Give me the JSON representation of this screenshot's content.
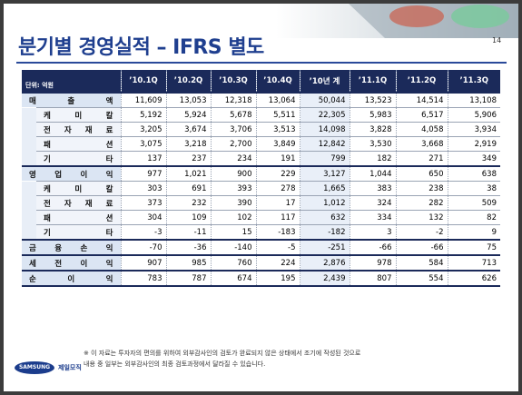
{
  "header": {
    "title": "분기별 경영실적 – IFRS 별도",
    "page": "14"
  },
  "table": {
    "unit": "단위: 억원",
    "columns": [
      "’10.1Q",
      "’10.2Q",
      "’10.3Q",
      "’10.4Q",
      "’10년 계",
      "’11.1Q",
      "’11.2Q",
      "’11.3Q"
    ],
    "rows": [
      {
        "label": "매 출 액",
        "values": [
          "11,609",
          "13,053",
          "12,318",
          "13,064",
          "50,044",
          "13,523",
          "14,514",
          "13,108"
        ],
        "sub": [
          {
            "label": "케 미 칼",
            "values": [
              "5,192",
              "5,924",
              "5,678",
              "5,511",
              "22,305",
              "5,983",
              "6,517",
              "5,906"
            ]
          },
          {
            "label": "전 자 재 료",
            "values": [
              "3,205",
              "3,674",
              "3,706",
              "3,513",
              "14,098",
              "3,828",
              "4,058",
              "3,934"
            ]
          },
          {
            "label": "패 션",
            "values": [
              "3,075",
              "3,218",
              "2,700",
              "3,849",
              "12,842",
              "3,530",
              "3,668",
              "2,919"
            ]
          },
          {
            "label": "기 타",
            "values": [
              "137",
              "237",
              "234",
              "191",
              "799",
              "182",
              "271",
              "349"
            ]
          }
        ]
      },
      {
        "label": "영 업 이 익",
        "values": [
          "977",
          "1,021",
          "900",
          "229",
          "3,127",
          "1,044",
          "650",
          "638"
        ],
        "sub": [
          {
            "label": "케 미 칼",
            "values": [
              "303",
              "691",
              "393",
              "278",
              "1,665",
              "383",
              "238",
              "38"
            ]
          },
          {
            "label": "전 자 재 료",
            "values": [
              "373",
              "232",
              "390",
              "17",
              "1,012",
              "324",
              "282",
              "509"
            ]
          },
          {
            "label": "패 션",
            "values": [
              "304",
              "109",
              "102",
              "117",
              "632",
              "334",
              "132",
              "82"
            ]
          },
          {
            "label": "기 타",
            "values": [
              "-3",
              "-11",
              "15",
              "-183",
              "-182",
              "3",
              "-2",
              "9"
            ]
          }
        ]
      },
      {
        "label": "금 융 손 익",
        "values": [
          "-70",
          "-36",
          "-140",
          "-5",
          "-251",
          "-66",
          "-66",
          "75"
        ]
      },
      {
        "label": "세 전 이 익",
        "values": [
          "907",
          "985",
          "760",
          "224",
          "2,876",
          "978",
          "584",
          "713"
        ]
      },
      {
        "label": "순 이 익",
        "values": [
          "783",
          "787",
          "674",
          "195",
          "2,439",
          "807",
          "554",
          "626"
        ]
      }
    ]
  },
  "footnote": [
    "※ 이 자료는 투자자의 편의를 위하여 외부감사인의 검토가 완료되지 않은 상태에서 조기에 작성된 것으로",
    "내용 중 일부는 외부감사인의 최종 검토과정에서 달라질 수 있습니다."
  ],
  "logo": {
    "brand": "SAMSUNG",
    "company": "제일모직"
  }
}
